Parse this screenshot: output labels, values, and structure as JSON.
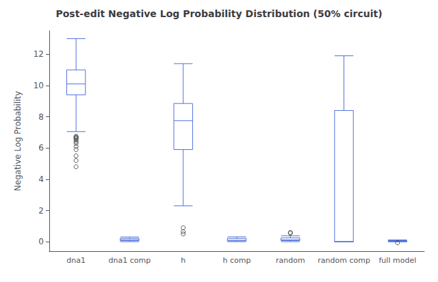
{
  "chart_data": {
    "type": "box",
    "title": "Post-edit Negative Log Probability Distribution (50% circuit)",
    "ylabel": "Negative Log Probability",
    "categories": [
      "dna1",
      "dna1 comp",
      "h",
      "h comp",
      "random",
      "random comp",
      "full model"
    ],
    "boxes": [
      {
        "q1": 9.4,
        "median": 10.1,
        "q3": 11.0,
        "whislo": 7.05,
        "whishi": 13.0,
        "fliers": [
          4.8,
          5.2,
          5.5,
          5.9,
          6.1,
          6.3,
          6.4,
          6.5,
          6.6,
          6.65,
          6.7,
          6.75
        ]
      },
      {
        "q1": 0.07,
        "median": 0.13,
        "q3": 0.22,
        "whislo": 0.01,
        "whishi": 0.31,
        "fliers": []
      },
      {
        "q1": 5.9,
        "median": 7.75,
        "q3": 8.85,
        "whislo": 2.3,
        "whishi": 11.4,
        "fliers": [
          0.5,
          0.65,
          0.9
        ]
      },
      {
        "q1": 0.06,
        "median": 0.1,
        "q3": 0.22,
        "whislo": 0.01,
        "whishi": 0.32,
        "fliers": []
      },
      {
        "q1": 0.08,
        "median": 0.13,
        "q3": 0.25,
        "whislo": 0.01,
        "whishi": 0.38,
        "fliers": [
          0.55,
          0.6
        ]
      },
      {
        "q1": 0.0,
        "median": 0.02,
        "q3": 8.4,
        "whislo": 0.0,
        "whishi": 11.9,
        "fliers": []
      },
      {
        "q1": 0.02,
        "median": 0.05,
        "q3": 0.08,
        "whislo": 0.0,
        "whishi": 0.12,
        "fliers": [
          -0.06
        ]
      }
    ],
    "marker": "circle",
    "ylim": [
      -0.6,
      13.5
    ],
    "yticks": [
      0,
      2,
      4,
      6,
      8,
      10,
      12
    ],
    "grid": false
  }
}
